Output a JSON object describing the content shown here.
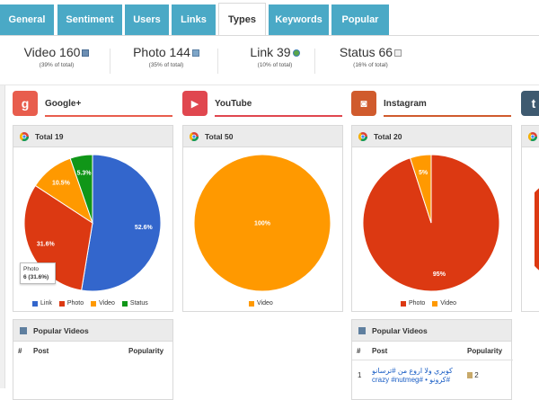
{
  "tabs": [
    {
      "label": "General",
      "active": false
    },
    {
      "label": "Sentiment",
      "active": false
    },
    {
      "label": "Users",
      "active": false
    },
    {
      "label": "Links",
      "active": false
    },
    {
      "label": "Types",
      "active": true
    },
    {
      "label": "Keywords",
      "active": false
    },
    {
      "label": "Popular",
      "active": false
    }
  ],
  "summary": [
    {
      "title": "Video 160",
      "sub": "(39% of total)",
      "icon": "film-icon"
    },
    {
      "title": "Photo 144",
      "sub": "(35% of total)",
      "icon": "image-icon"
    },
    {
      "title": "Link 39",
      "sub": "(10% of total)",
      "icon": "globe-icon"
    },
    {
      "title": "Status 66",
      "sub": "(16% of total)",
      "icon": "document-icon"
    }
  ],
  "networks": [
    {
      "name": "Google+",
      "badge": "g",
      "color": "#e85d4d"
    },
    {
      "name": "YouTube",
      "badge": "▶",
      "color": "#e0474f"
    },
    {
      "name": "Instagram",
      "badge": "◙",
      "color": "#d05b2d"
    },
    {
      "name": "",
      "badge": "t",
      "color": "#3e5a70"
    }
  ],
  "colors": {
    "link": "#3366cc",
    "photo": "#dc3912",
    "video": "#ff9900",
    "status": "#109618",
    "tab": "#4aa9c6"
  },
  "panels": {
    "googleplus": {
      "title": "Total 19"
    },
    "youtube": {
      "title": "Total 50"
    },
    "instagram": {
      "title": "Total 20"
    }
  },
  "chart_data": [
    {
      "type": "pie",
      "title": "Total 19",
      "categories": [
        "Link",
        "Photo",
        "Video",
        "Status"
      ],
      "values": [
        52.6,
        31.6,
        10.5,
        5.3
      ],
      "labels": [
        "52.6%",
        "31.6%",
        "10.5%",
        "5.3%"
      ],
      "legend": [
        "Link",
        "Photo",
        "Video",
        "Status"
      ]
    },
    {
      "type": "pie",
      "title": "Total 50",
      "categories": [
        "Video"
      ],
      "values": [
        100
      ],
      "labels": [
        "100%"
      ],
      "legend": [
        "Video"
      ]
    },
    {
      "type": "pie",
      "title": "Total 20",
      "categories": [
        "Photo",
        "Video"
      ],
      "values": [
        95,
        5
      ],
      "labels": [
        "95%",
        "5%"
      ],
      "legend": [
        "Photo",
        "Video"
      ]
    }
  ],
  "tooltip": {
    "line1": "Photo",
    "line2": "6 (31.6%)"
  },
  "popular_videos": {
    "title": "Popular Videos",
    "columns": [
      "#",
      "Post",
      "Popularity"
    ],
    "instagram_rows": [
      {
        "num": "1",
        "post": "كوبري ولا اروع من #ترسانو #كرونو • #crazy #nutmeg",
        "popularity": "2"
      }
    ]
  }
}
